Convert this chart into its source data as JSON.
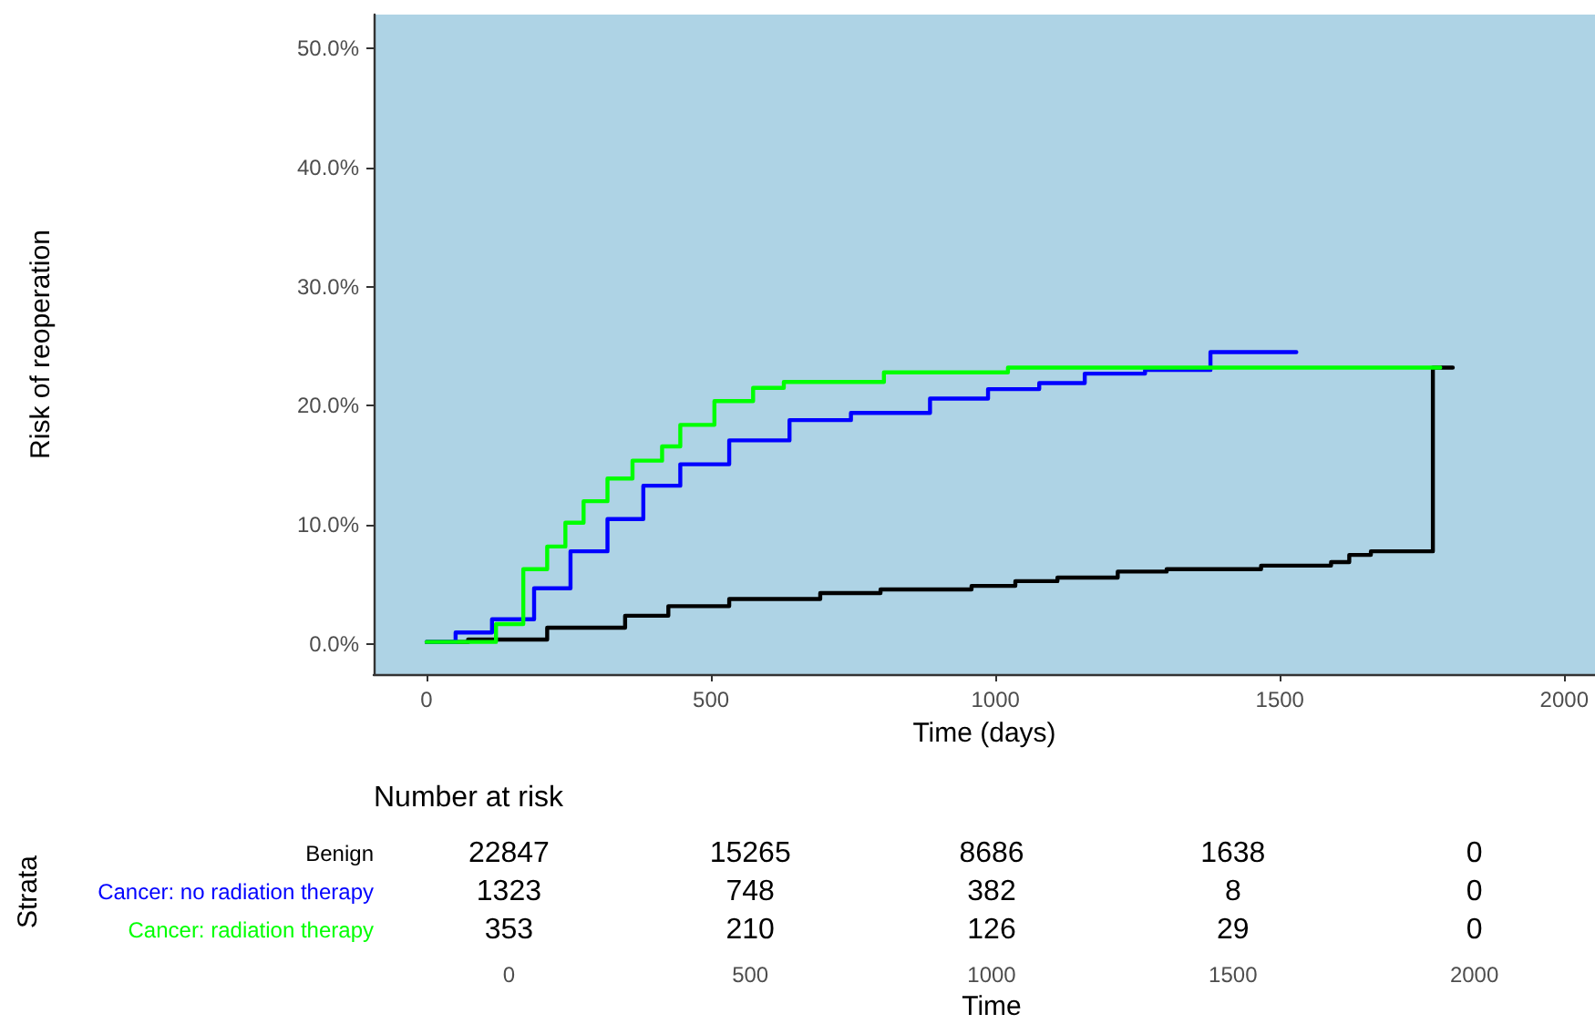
{
  "chart_data": [
    {
      "type": "step",
      "xlabel": "Time (days)",
      "ylabel": "Risk of reoperation",
      "xlim": [
        -93,
        2054
      ],
      "xticks": [
        0,
        500,
        1000,
        1500,
        2000
      ],
      "ylim": [
        -2.5,
        52.8
      ],
      "yticks": [
        {
          "value": 0,
          "label": "0.0%"
        },
        {
          "value": 10,
          "label": "10.0%"
        },
        {
          "value": 20,
          "label": "20.0%"
        },
        {
          "value": 30,
          "label": "30.0%"
        },
        {
          "value": 40,
          "label": "40.0%"
        },
        {
          "value": 50,
          "label": "50.0%"
        }
      ],
      "grid": false,
      "marker": "none",
      "line_style": "solid",
      "series": [
        {
          "color": "#000000",
          "x": [
            0,
            73,
            212,
            349,
            425,
            532,
            692,
            798,
            958,
            1035,
            1109,
            1215,
            1301,
            1467,
            1590,
            1622,
            1660,
            1769,
            1804
          ],
          "values": [
            0.2,
            0.4,
            1.4,
            2.4,
            3.2,
            3.8,
            4.3,
            4.6,
            4.9,
            5.3,
            5.6,
            6.1,
            6.3,
            6.6,
            6.9,
            7.5,
            7.8,
            23.2,
            23.2
          ]
        },
        {
          "color": "#0000ff",
          "x": [
            0,
            51,
            115,
            189,
            253,
            318,
            381,
            446,
            532,
            638,
            746,
            885,
            987,
            1077,
            1157,
            1263,
            1378,
            1529
          ],
          "values": [
            0.2,
            1.0,
            2.1,
            4.7,
            7.8,
            10.5,
            13.3,
            15.1,
            17.1,
            18.8,
            19.4,
            20.6,
            21.4,
            21.9,
            22.7,
            23.0,
            24.5,
            24.5
          ]
        },
        {
          "color": "#00ff00",
          "x": [
            0,
            122,
            170,
            212,
            244,
            276,
            318,
            362,
            414,
            446,
            506,
            574,
            628,
            804,
            1022,
            1782
          ],
          "values": [
            0.2,
            1.7,
            6.3,
            8.2,
            10.2,
            12.0,
            13.9,
            15.4,
            16.6,
            18.4,
            20.4,
            21.5,
            22.0,
            22.8,
            23.2,
            23.2
          ]
        }
      ]
    },
    {
      "type": "heatmap",
      "title": "Number at risk",
      "xlabel": "Time",
      "ylabel": "Strata",
      "data_labels": true,
      "categories": [
        "0",
        "500",
        "1000",
        "1500",
        "2000"
      ],
      "y_categories": [
        "Benign",
        "Cancer: no radiation therapy",
        "Cancer: radiation therapy"
      ],
      "cells": [
        [
          22847,
          15265,
          8686,
          1638,
          0
        ],
        [
          1323,
          748,
          382,
          8,
          0
        ],
        [
          353,
          210,
          126,
          29,
          0
        ]
      ]
    }
  ]
}
